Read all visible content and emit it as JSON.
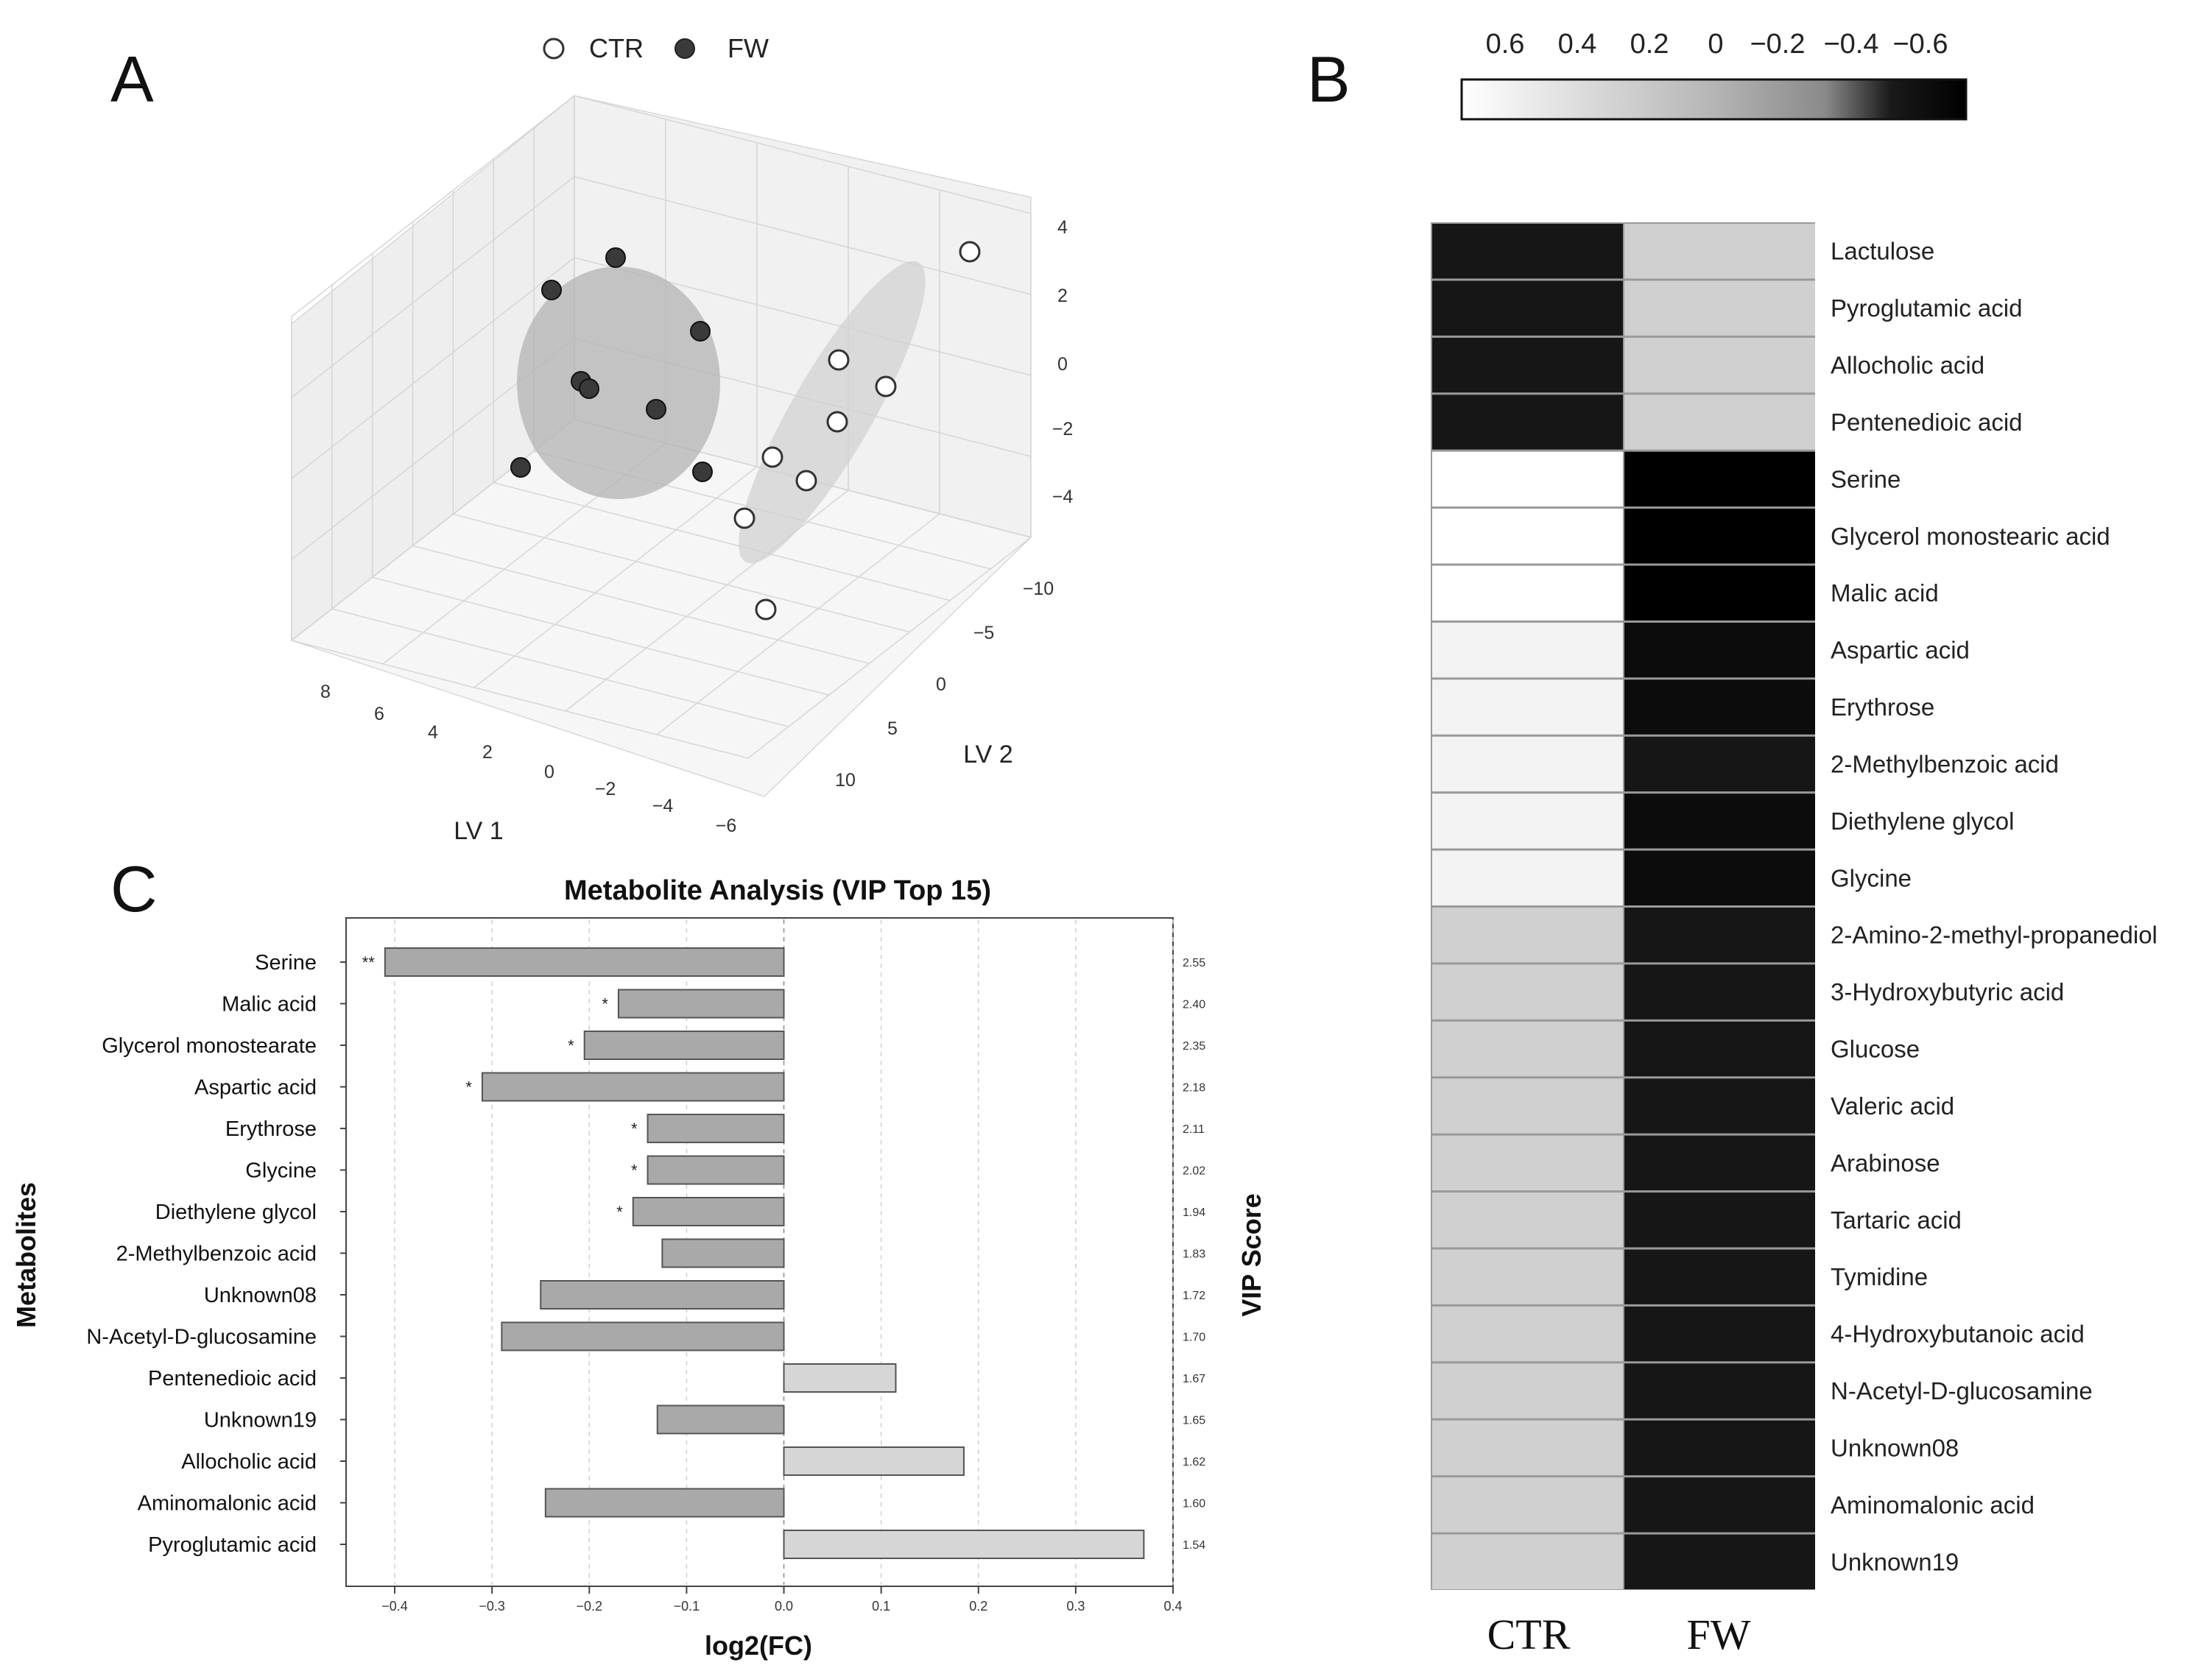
{
  "panels": {
    "a": "A",
    "b": "B",
    "c": "C"
  },
  "colors": {
    "ctr_fill": "#ffffff",
    "fw_fill": "#3a3a3a",
    "bar_neg": "#a9a9a9",
    "bar_pos": "#d6d6d6",
    "ellipse": "#b3b3b3"
  },
  "chart_data": [
    {
      "type": "scatter",
      "subtype": "3d-pls-da",
      "legend": [
        {
          "name": "CTR",
          "marker": "open-circle"
        },
        {
          "name": "FW",
          "marker": "filled-circle"
        }
      ],
      "xlabel": "LV 1",
      "ylabel": "LV 2",
      "zlabel": "",
      "x_ticks": [
        "8",
        "6",
        "4",
        "2",
        "0",
        "−2",
        "−4",
        "−6"
      ],
      "y_ticks": [
        "−10",
        "−5",
        "0",
        "5",
        "10"
      ],
      "z_ticks": [
        "4",
        "2",
        "0",
        "−2",
        "−4"
      ],
      "xlim": [
        -6,
        8
      ],
      "ylim": [
        -10,
        10
      ],
      "zlim": [
        -4,
        4
      ],
      "series": [
        {
          "name": "CTR",
          "points": [
            {
              "lv1": -5,
              "lv2": -10,
              "lv3": 1.5
            },
            {
              "lv1": -1.5,
              "lv2": -3.5,
              "lv3": -0.5
            },
            {
              "lv1": -2.5,
              "lv2": -3.0,
              "lv3": -0.8
            },
            {
              "lv1": -1.5,
              "lv2": -1.5,
              "lv3": -2.0
            },
            {
              "lv1": 0.0,
              "lv2": -3.0,
              "lv3": -2.5
            },
            {
              "lv1": 0.5,
              "lv2": -2.5,
              "lv3": -3.2
            },
            {
              "lv1": 1.5,
              "lv2": -1.5,
              "lv3": -3.6
            },
            {
              "lv1": 2.0,
              "lv2": 3.0,
              "lv3": -4.0
            }
          ]
        },
        {
          "name": "FW",
          "points": [
            {
              "lv1": 5.5,
              "lv2": -3.0,
              "lv3": 4.0
            },
            {
              "lv1": 7.0,
              "lv2": -2.0,
              "lv3": 2.5
            },
            {
              "lv1": 3.5,
              "lv2": -1.5,
              "lv3": 1.5
            },
            {
              "lv1": 6.0,
              "lv2": -1.0,
              "lv3": -0.5
            },
            {
              "lv1": 5.8,
              "lv2": -0.8,
              "lv3": -0.9
            },
            {
              "lv1": 4.5,
              "lv2": -0.5,
              "lv3": -1.5
            },
            {
              "lv1": 7.5,
              "lv2": 0.5,
              "lv3": -3.0
            },
            {
              "lv1": 4.0,
              "lv2": 1.0,
              "lv3": -3.0
            }
          ]
        }
      ]
    },
    {
      "type": "heatmap",
      "columns": [
        "CTR",
        "FW"
      ],
      "colorbar_ticks": [
        "0.6",
        "0.4",
        "0.2",
        "0",
        "−0.2",
        "−0.4",
        "−0.6"
      ],
      "colorbar_range": [
        0.6,
        -0.6
      ],
      "rows": [
        {
          "name": "Lactulose",
          "values": [
            -0.45,
            0.22
          ]
        },
        {
          "name": "Pyroglutamic acid",
          "values": [
            -0.45,
            0.22
          ]
        },
        {
          "name": "Allocholic acid",
          "values": [
            -0.45,
            0.22
          ]
        },
        {
          "name": "Pentenedioic acid",
          "values": [
            -0.45,
            0.22
          ]
        },
        {
          "name": "Serine",
          "values": [
            0.6,
            -0.6
          ]
        },
        {
          "name": "Glycerol monostearic acid",
          "values": [
            0.6,
            -0.6
          ]
        },
        {
          "name": "Malic acid",
          "values": [
            0.6,
            -0.6
          ]
        },
        {
          "name": "Aspartic acid",
          "values": [
            0.5,
            -0.52
          ]
        },
        {
          "name": "Erythrose",
          "values": [
            0.5,
            -0.52
          ]
        },
        {
          "name": "2-Methylbenzoic acid",
          "values": [
            0.5,
            -0.45
          ]
        },
        {
          "name": "Diethylene glycol",
          "values": [
            0.5,
            -0.52
          ]
        },
        {
          "name": "Glycine",
          "values": [
            0.5,
            -0.52
          ]
        },
        {
          "name": "2-Amino-2-methyl-propanediol",
          "values": [
            0.22,
            -0.45
          ]
        },
        {
          "name": "3-Hydroxybutyric acid",
          "values": [
            0.22,
            -0.45
          ]
        },
        {
          "name": "Glucose",
          "values": [
            0.22,
            -0.45
          ]
        },
        {
          "name": "Valeric acid",
          "values": [
            0.22,
            -0.45
          ]
        },
        {
          "name": "Arabinose",
          "values": [
            0.22,
            -0.45
          ]
        },
        {
          "name": "Tartaric acid",
          "values": [
            0.22,
            -0.45
          ]
        },
        {
          "name": "Tymidine",
          "values": [
            0.22,
            -0.45
          ]
        },
        {
          "name": "4-Hydroxybutanoic acid",
          "values": [
            0.22,
            -0.45
          ]
        },
        {
          "name": "N-Acetyl-D-glucosamine",
          "values": [
            0.22,
            -0.45
          ]
        },
        {
          "name": "Unknown08",
          "values": [
            0.22,
            -0.45
          ]
        },
        {
          "name": "Aminomalonic acid",
          "values": [
            0.22,
            -0.45
          ]
        },
        {
          "name": "Unknown19",
          "values": [
            0.22,
            -0.45
          ]
        }
      ]
    },
    {
      "type": "bar",
      "orientation": "horizontal",
      "title": "Metabolite Analysis (VIP Top 15)",
      "xlabel": "log2(FC)",
      "ylabel": "Metabolites",
      "y2label": "VIP Score",
      "xlim": [
        -0.45,
        0.4
      ],
      "x_ticks": [
        "−0.4",
        "−0.3",
        "−0.2",
        "−0.1",
        "0.0",
        "0.1",
        "0.2",
        "0.3",
        "0.4"
      ],
      "grid": "vertical-dashed",
      "categories": [
        "Serine",
        "Malic acid",
        "Glycerol monostearate",
        "Aspartic acid",
        "Erythrose",
        "Glycine",
        "Diethylene glycol",
        "2-Methylbenzoic acid",
        "Unknown08",
        "N-Acetyl-D-glucosamine",
        "Pentenedioic acid",
        "Unknown19",
        "Allocholic acid",
        "Aminomalonic acid",
        "Pyroglutamic acid"
      ],
      "values": [
        -0.41,
        -0.17,
        -0.205,
        -0.31,
        -0.14,
        -0.14,
        -0.155,
        -0.125,
        -0.25,
        -0.29,
        0.115,
        -0.13,
        0.185,
        -0.245,
        0.37
      ],
      "vip": [
        "2.55",
        "2.40",
        "2.35",
        "2.18",
        "2.11",
        "2.02",
        "1.94",
        "1.83",
        "1.72",
        "1.70",
        "1.67",
        "1.65",
        "1.62",
        "1.60",
        "1.54"
      ],
      "significance": [
        "**",
        "*",
        "*",
        "*",
        "*",
        "*",
        "*",
        "",
        "",
        "",
        "",
        "",
        "",
        "",
        ""
      ]
    }
  ]
}
